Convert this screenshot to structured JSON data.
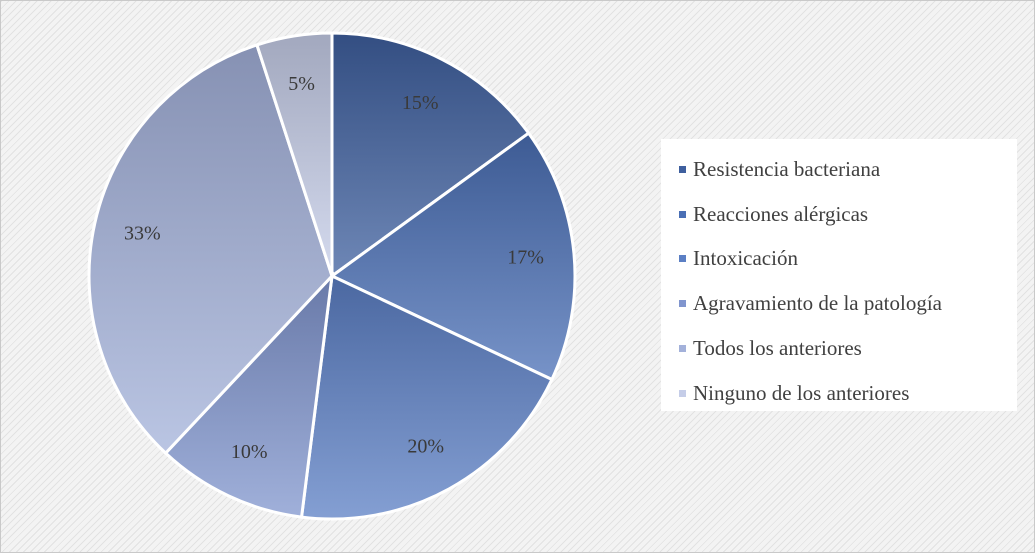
{
  "chart_data": {
    "type": "pie",
    "title": "",
    "legend_position": "right",
    "slices": [
      {
        "label": "Resistencia bacteriana",
        "value": 15,
        "display": "15%",
        "color": "#3e5f9e"
      },
      {
        "label": "Reacciones alérgicas",
        "value": 17,
        "display": "17%",
        "color": "#4a6fb5"
      },
      {
        "label": "Intoxicación",
        "value": 20,
        "display": "20%",
        "color": "#5b7fc4"
      },
      {
        "label": "Agravamiento de la patología",
        "value": 10,
        "display": "10%",
        "color": "#8095ce"
      },
      {
        "label": "Todos los anteriores",
        "value": 33,
        "display": "33%",
        "color": "#a3b1da"
      },
      {
        "label": "Ninguno de los anteriores",
        "value": 5,
        "display": "5%",
        "color": "#c5cde8"
      }
    ]
  }
}
